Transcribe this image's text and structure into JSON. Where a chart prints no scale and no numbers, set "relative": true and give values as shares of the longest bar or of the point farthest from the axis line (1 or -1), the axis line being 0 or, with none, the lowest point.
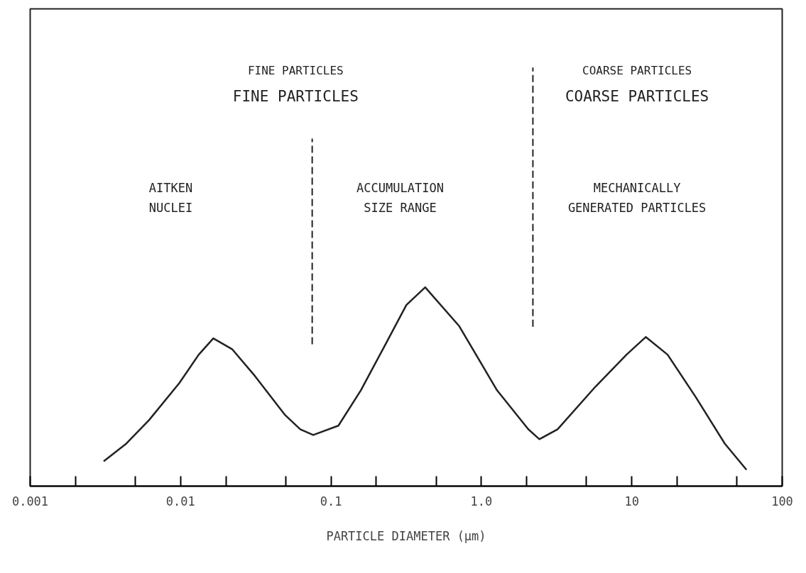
{
  "chart_data": {
    "type": "line",
    "relative": true,
    "log": "x",
    "xlabel": "PARTICLE DIAMETER (µm)",
    "x": [
      0.00308,
      0.00436,
      0.00617,
      0.0098,
      0.0132,
      0.0165,
      0.022,
      0.0312,
      0.0496,
      0.0625,
      0.0762,
      0.112,
      0.158,
      0.224,
      0.317,
      0.423,
      0.713,
      1.27,
      2.05,
      2.43,
      3.21,
      5.73,
      9.22,
      12.4,
      17.3,
      26.7,
      41.5,
      57.9
    ],
    "series": [
      {
        "color": "#222222",
        "values": [
          0.125,
          0.214,
          0.332,
          0.518,
          0.661,
          0.743,
          0.689,
          0.554,
          0.357,
          0.286,
          0.257,
          0.304,
          0.482,
          0.696,
          0.911,
          1,
          0.804,
          0.482,
          0.286,
          0.236,
          0.286,
          0.5,
          0.661,
          0.75,
          0.661,
          0.446,
          0.214,
          0.082
        ]
      }
    ],
    "xlim": [
      0.001,
      100
    ],
    "xticks": [
      {
        "value": 0.001,
        "label": "0.001"
      },
      {
        "value": 0.002,
        "label": null
      },
      {
        "value": 0.005,
        "label": null
      },
      {
        "value": 0.01,
        "label": "0.01"
      },
      {
        "value": 0.02,
        "label": null
      },
      {
        "value": 0.05,
        "label": null
      },
      {
        "value": 0.1,
        "label": "0.1"
      },
      {
        "value": 0.2,
        "label": null
      },
      {
        "value": 0.5,
        "label": null
      },
      {
        "value": 1,
        "label": "1.0"
      },
      {
        "value": 2,
        "label": null
      },
      {
        "value": 5,
        "label": null
      },
      {
        "value": 10,
        "label": "10"
      },
      {
        "value": 20,
        "label": null
      },
      {
        "value": 50,
        "label": null
      },
      {
        "value": 100,
        "label": "100"
      }
    ],
    "ref_lines": [
      {
        "axis": "x",
        "value": 0.075,
        "line_style": "dashed",
        "color": "#222222"
      },
      {
        "axis": "x",
        "value": 2.2,
        "line_style": "dashed",
        "color": "#222222"
      }
    ],
    "annotations": [
      "FINE PARTICLES",
      "FINE PARTICLES",
      "COARSE PARTICLES",
      "COARSE PARTICLES",
      "AITKEN\nNUCLEI",
      "ACCUMULATION\nSIZE RANGE",
      "MECHANICALLY\nGENERATED PARTICLES"
    ],
    "grid": false
  }
}
